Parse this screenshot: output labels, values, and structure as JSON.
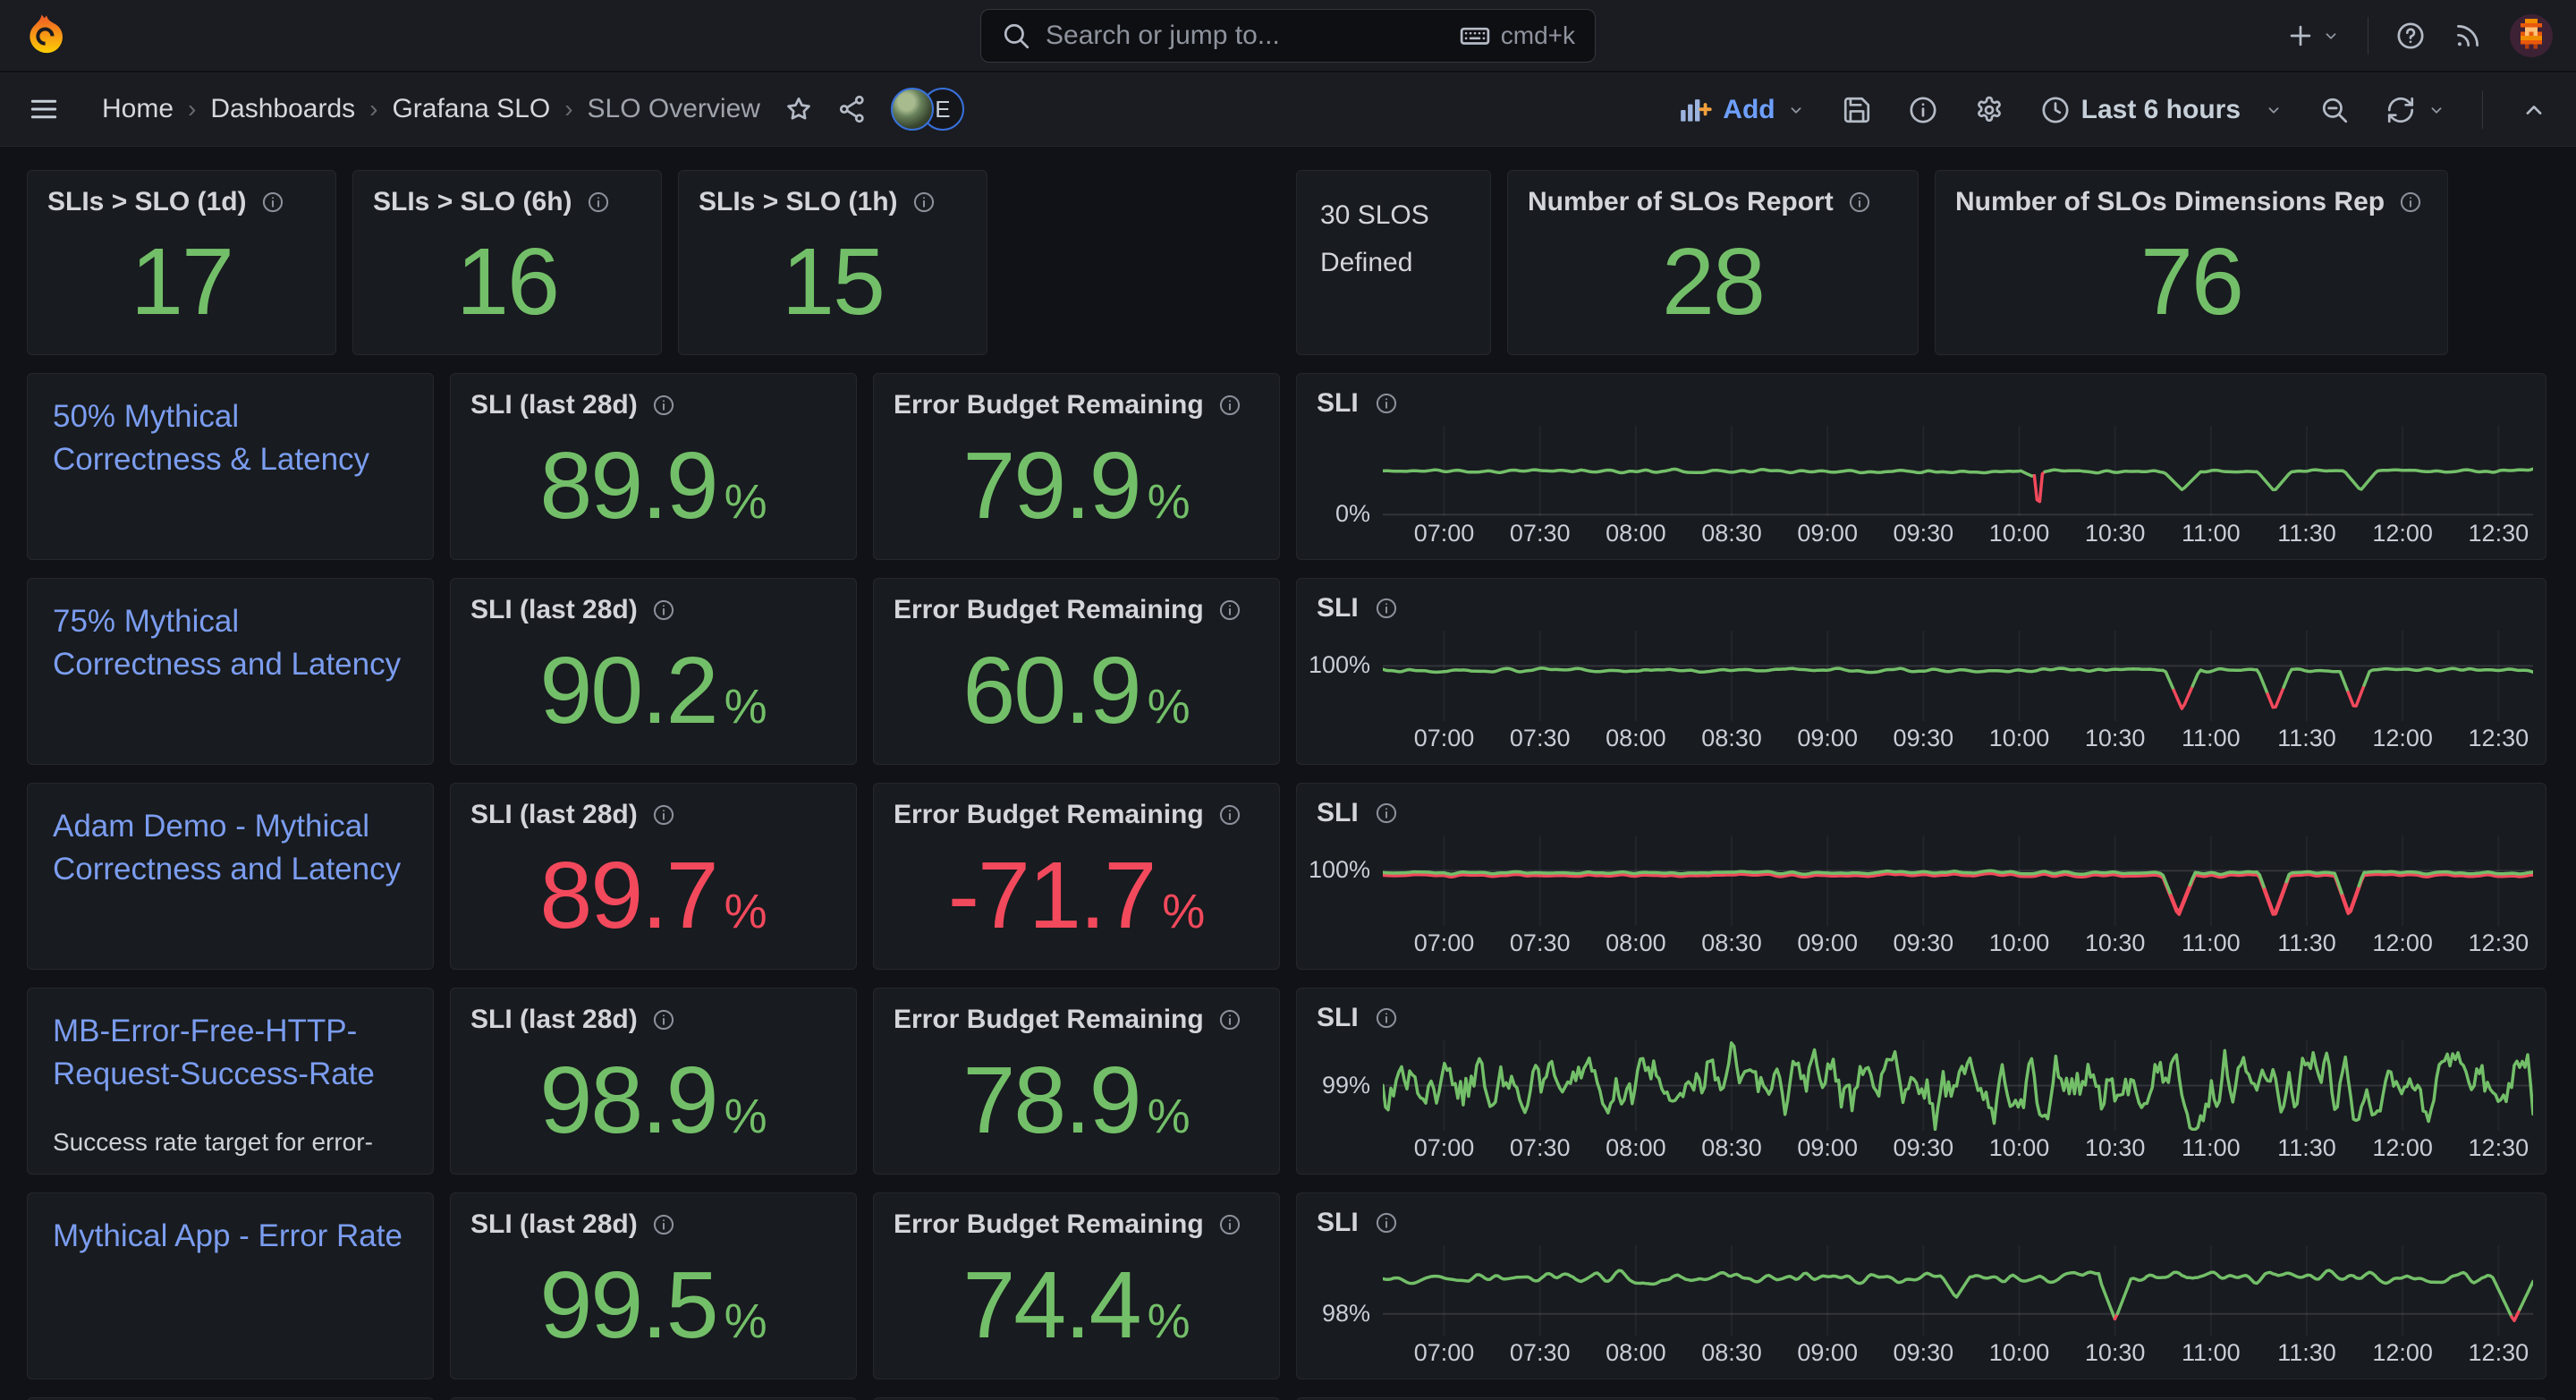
{
  "topnav": {
    "search_placeholder": "Search or jump to...",
    "search_shortcut": "cmd+k"
  },
  "breadcrumb": {
    "items": [
      "Home",
      "Dashboards",
      "Grafana SLO",
      "SLO Overview"
    ],
    "separator": "›"
  },
  "toolbar": {
    "add_label": "Add",
    "time_range_label": "Last 6 hours"
  },
  "avatars": {
    "badge_label": "E"
  },
  "labels": {
    "sli_title": "SLI (last 28d)",
    "ebr_title": "Error Budget Remaining",
    "chart_title": "SLI",
    "percent": "%"
  },
  "stats": {
    "left": [
      {
        "title": "SLIs > SLO (1d)",
        "value": "17"
      },
      {
        "title": "SLIs > SLO (6h)",
        "value": "16"
      },
      {
        "title": "SLIs > SLO (1h)",
        "value": "15"
      }
    ],
    "defined": {
      "line1": "30 SLOS",
      "line2": "Defined"
    },
    "right": [
      {
        "title": "Number of SLOs Report",
        "value": "28"
      },
      {
        "title": "Number of SLOs Dimensions Rep",
        "value": "76"
      }
    ]
  },
  "slos": [
    {
      "name": "50% Mythical Correctness & Latency",
      "desc": "",
      "sli": "89.9",
      "ebr": "79.9",
      "tone": "green"
    },
    {
      "name": "75% Mythical Correctness and Latency",
      "desc": "",
      "sli": "90.2",
      "ebr": "60.9",
      "tone": "green"
    },
    {
      "name": "Adam Demo - Mythical Correctness and Latency",
      "desc": "",
      "sli": "89.7",
      "ebr": "-71.7",
      "tone": "red"
    },
    {
      "name": "MB-Error-Free-HTTP-Request-Success-Rate",
      "desc": "Success rate target for error-free HTTP requests in the",
      "sli": "98.9",
      "ebr": "78.9",
      "tone": "green"
    },
    {
      "name": "Mythical App - Error Rate",
      "desc": "",
      "sli": "99.5",
      "ebr": "74.4",
      "tone": "green"
    }
  ],
  "colors": {
    "green": "#73BF69",
    "red": "#F2495C",
    "link": "#7B9DF0"
  },
  "chart_x_ticks": [
    "07:00",
    "07:30",
    "08:00",
    "08:30",
    "09:00",
    "09:30",
    "10:00",
    "10:30",
    "11:00",
    "11:30",
    "12:00",
    "12:30"
  ],
  "chart_data": [
    {
      "type": "line",
      "title": "SLI",
      "slo": "50% Mythical Correctness & Latency",
      "ylabel": "0%",
      "grid_value": 0,
      "y_range": [
        -2,
        112
      ],
      "x_domain_hours": [
        6.68,
        12.68
      ],
      "baseline_pct": 55,
      "noise": {
        "seed": 11,
        "amp": 2.0,
        "smooth": 3,
        "wander_amp": 0
      },
      "red_below": null,
      "red_shadow": 0,
      "events": [
        {
          "hour": 10.07,
          "half_width_h": 0.06,
          "bottom_pct": 48,
          "color": null
        },
        {
          "hour": 10.1,
          "half_width_h": 0.022,
          "bottom_pct": 0,
          "color": "red"
        },
        {
          "hour": 10.85,
          "half_width_h": 0.1,
          "bottom_pct": 31,
          "color": null
        },
        {
          "hour": 11.33,
          "half_width_h": 0.09,
          "bottom_pct": 29.5,
          "color": null
        },
        {
          "hour": 11.78,
          "half_width_h": 0.085,
          "bottom_pct": 30.5,
          "color": null
        }
      ]
    },
    {
      "type": "line",
      "title": "SLI",
      "slo": "75% Mythical Correctness and Latency",
      "ylabel": "100%",
      "grid_value": 100,
      "y_range": [
        81.7,
        111.7
      ],
      "x_domain_hours": [
        6.68,
        12.68
      ],
      "baseline_pct": 98.6,
      "noise": {
        "seed": 22,
        "amp": 0.55,
        "smooth": 3,
        "wander_amp": 0
      },
      "red_below": 92,
      "red_shadow": 0,
      "events": [
        {
          "hour": 10.85,
          "half_width_h": 0.09,
          "bottom_pct": 85.5,
          "color": null
        },
        {
          "hour": 11.33,
          "half_width_h": 0.085,
          "bottom_pct": 85.2,
          "color": null
        },
        {
          "hour": 11.75,
          "half_width_h": 0.08,
          "bottom_pct": 85.6,
          "color": null
        }
      ]
    },
    {
      "type": "line",
      "title": "SLI",
      "slo": "Adam Demo - Mythical Correctness and Latency",
      "ylabel": "100%",
      "grid_value": 100,
      "y_range": [
        81.7,
        111.7
      ],
      "x_domain_hours": [
        6.68,
        12.68
      ],
      "baseline_pct": 99.3,
      "noise": {
        "seed": 33,
        "amp": 0.5,
        "smooth": 3,
        "wander_amp": 0
      },
      "red_below": 94,
      "red_shadow": 0.9,
      "events": [
        {
          "hour": 10.83,
          "half_width_h": 0.085,
          "bottom_pct": 85.8,
          "color": null
        },
        {
          "hour": 11.33,
          "half_width_h": 0.08,
          "bottom_pct": 85.3,
          "color": null
        },
        {
          "hour": 11.72,
          "half_width_h": 0.075,
          "bottom_pct": 85.8,
          "color": null
        }
      ]
    },
    {
      "type": "line",
      "title": "SLI",
      "slo": "MB-Error-Free-HTTP-Request-Success-Rate",
      "ylabel": "99%",
      "grid_value": 99,
      "y_range": [
        98.5,
        99.5
      ],
      "x_domain_hours": [
        6.68,
        12.68
      ],
      "baseline_pct": 99.02,
      "noise": {
        "seed": 44,
        "amp": 0.26,
        "smooth": 1,
        "wander_amp": 0.18,
        "wander_window": 14
      },
      "red_below": null,
      "red_shadow": 0,
      "events": []
    },
    {
      "type": "line",
      "title": "SLI",
      "slo": "Mythical App - Error Rate",
      "ylabel": "98%",
      "grid_value": 98,
      "y_range": [
        97.63,
        99.17
      ],
      "x_domain_hours": [
        6.68,
        12.68
      ],
      "baseline_pct": 98.62,
      "noise": {
        "seed": 55,
        "amp": 0.1,
        "smooth": 3,
        "wander_amp": 0
      },
      "red_below": 98,
      "red_shadow": 0,
      "events": [
        {
          "hour": 9.67,
          "half_width_h": 0.07,
          "bottom_pct": 98.27,
          "color": null
        },
        {
          "hour": 10.5,
          "half_width_h": 0.085,
          "bottom_pct": 97.9,
          "color": null
        },
        {
          "hour": 12.58,
          "half_width_h": 0.11,
          "bottom_pct": 97.87,
          "color": null
        }
      ]
    }
  ]
}
